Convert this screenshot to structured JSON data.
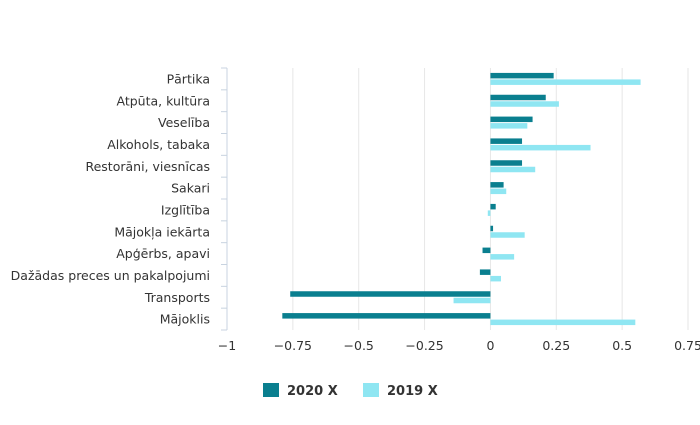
{
  "chart_data": {
    "type": "bar",
    "orientation": "horizontal",
    "title": "",
    "xlabel": "",
    "ylabel": "",
    "categories": [
      "Pārtika",
      "Atpūta, kultūra",
      "Veselība",
      "Alkohols, tabaka",
      "Restorāni, viesnīcas",
      "Sakari",
      "Izglītība",
      "Mājokļa iekārta",
      "Apģērbs, apavi",
      "Dažādas preces un pakalpojumi",
      "Transports",
      "Mājoklis"
    ],
    "series": [
      {
        "name": "2020 X",
        "color": "#0a7f8f",
        "values": [
          0.24,
          0.21,
          0.16,
          0.12,
          0.12,
          0.05,
          0.02,
          0.01,
          -0.03,
          -0.04,
          -0.76,
          -0.79
        ]
      },
      {
        "name": "2019 X",
        "color": "#8fe6f2",
        "values": [
          0.57,
          0.26,
          0.14,
          0.38,
          0.17,
          0.06,
          -0.01,
          0.13,
          0.09,
          0.04,
          -0.14,
          0.55
        ]
      }
    ],
    "xlim": [
      -1,
      0.75
    ],
    "x_ticks": [
      "−1",
      "−0.75",
      "−0.5",
      "−0.25",
      "0",
      "0.25",
      "0.5",
      "0.75"
    ],
    "x_tick_values": [
      -1,
      -0.75,
      -0.5,
      -0.25,
      0,
      0.25,
      0.5,
      0.75
    ],
    "legend_position": "bottom",
    "grid": true
  }
}
